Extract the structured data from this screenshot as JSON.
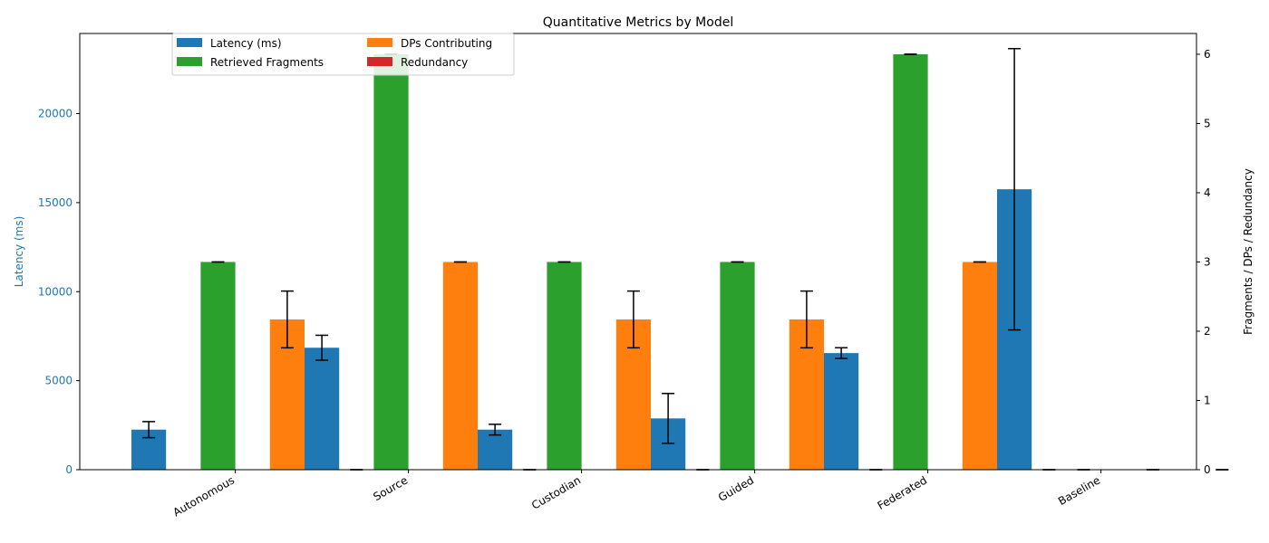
{
  "chart_data": {
    "type": "bar",
    "title": "Quantitative Metrics by Model",
    "categories": [
      "Autonomous",
      "Source",
      "Custodian",
      "Guided",
      "Federated",
      "Baseline"
    ],
    "left_axis": {
      "label": "Latency (ms)",
      "ylim": [
        0,
        24500
      ],
      "ticks": [
        0,
        5000,
        10000,
        15000,
        20000
      ],
      "color": "#1f77b4"
    },
    "right_axis": {
      "label": "Fragments / DPs / Redundancy",
      "ylim": [
        0,
        6.3
      ],
      "ticks": [
        0,
        1,
        2,
        3,
        4,
        5,
        6
      ]
    },
    "series": [
      {
        "name": "Latency (ms)",
        "axis": "left",
        "color": "#1f77b4",
        "values": [
          2250,
          6850,
          2250,
          2880,
          6550,
          15750
        ],
        "errors": [
          450,
          700,
          300,
          1400,
          300,
          7900
        ]
      },
      {
        "name": "Retrieved Fragments",
        "axis": "right",
        "color": "#2ca02c",
        "values": [
          3,
          6,
          3,
          3,
          6,
          0
        ],
        "errors": [
          0,
          0,
          0,
          0,
          0,
          0
        ]
      },
      {
        "name": "DPs Contributing",
        "axis": "right",
        "color": "#ff7f0e",
        "values": [
          2.17,
          3,
          2.17,
          2.17,
          3,
          0
        ],
        "errors": [
          0.41,
          0,
          0.41,
          0.41,
          0,
          0
        ]
      },
      {
        "name": "Redundancy",
        "axis": "right",
        "color": "#d62728",
        "values": [
          0,
          0,
          0,
          0,
          0,
          0
        ],
        "errors": [
          0,
          0,
          0,
          0,
          0,
          0
        ]
      }
    ],
    "legend": {
      "placement": "top-left",
      "columns": 2
    },
    "grid": false
  }
}
